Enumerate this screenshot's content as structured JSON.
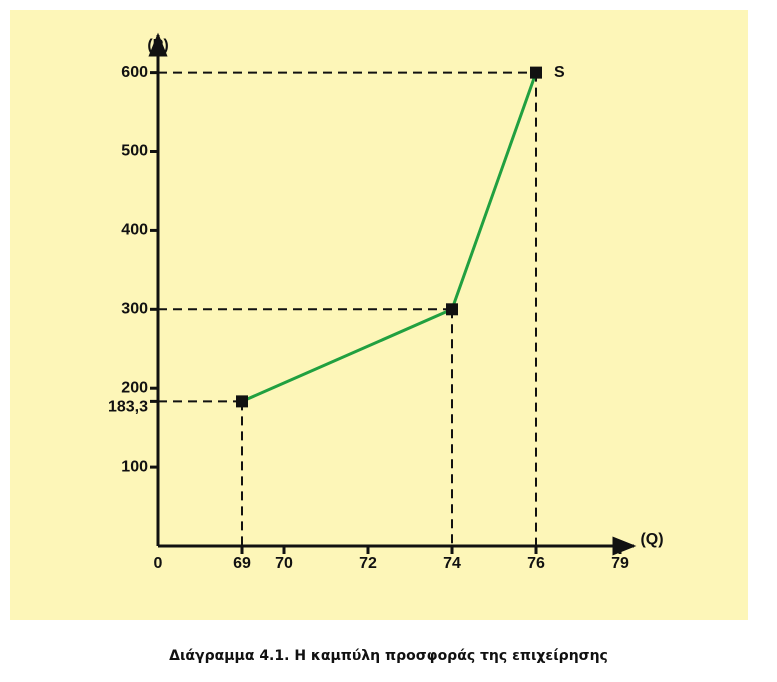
{
  "chart_data": {
    "type": "line",
    "caption": "Διάγραμμα 4.1. Η καμπύλη προσφοράς της επιχείρησης",
    "y_label": "(P)",
    "x_label": "(Q)",
    "x": [
      69,
      74,
      76
    ],
    "series": [
      {
        "name": "S",
        "color": "#21a040",
        "values": [
          183.3,
          300,
          600
        ]
      }
    ],
    "xticks": [
      0,
      69,
      70,
      72,
      74,
      76,
      79
    ],
    "ylim": [
      0,
      635
    ],
    "yticks": [
      100,
      {
        "value": 183.3,
        "label": "183,3"
      },
      200,
      300,
      400,
      500,
      600
    ],
    "background": "#fdf6b8"
  }
}
